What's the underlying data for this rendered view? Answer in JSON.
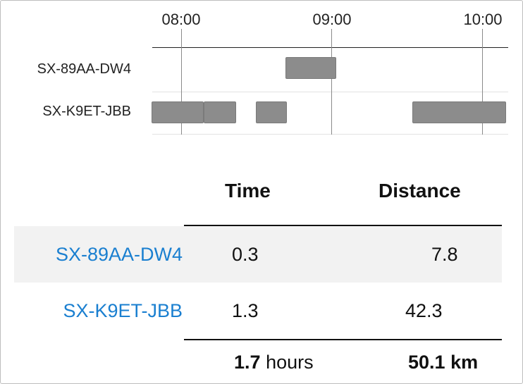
{
  "timeline": {
    "hours": [
      "08:00",
      "09:00",
      "10:00"
    ],
    "rows": [
      {
        "label": "SX-89AA-DW4"
      },
      {
        "label": "SX-K9ET-JBB"
      }
    ]
  },
  "table": {
    "headers": {
      "time": "Time",
      "distance": "Distance"
    },
    "rows": [
      {
        "vehicle": "SX-89AA-DW4",
        "time": "0.3",
        "distance": "7.8"
      },
      {
        "vehicle": "SX-K9ET-JBB",
        "time": "1.3",
        "distance": "42.3"
      }
    ],
    "totals": {
      "time_value": "1.7",
      "time_unit": "hours",
      "distance_value": "50.1",
      "distance_unit": "km"
    }
  },
  "colors": {
    "link": "#1a7fd0",
    "segment": "#8c8c8c",
    "highlight_row": "#f2f2f2"
  }
}
